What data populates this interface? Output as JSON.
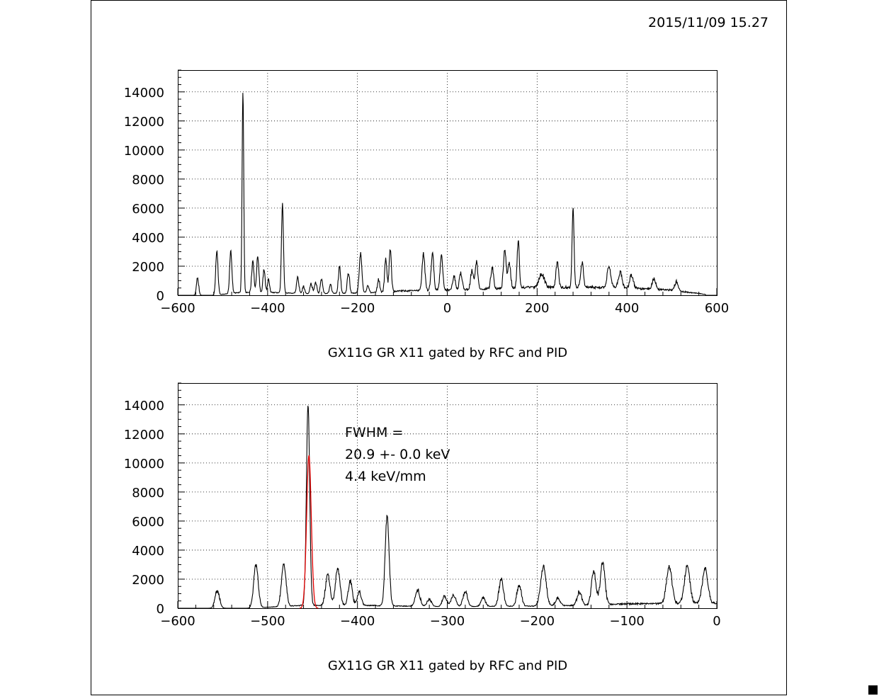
{
  "header": {
    "timestamp": "2015/11/09  15.27"
  },
  "colors": {
    "frame": "#000000",
    "histogram": "#000000",
    "fit": "#e00000",
    "grid": "#000000"
  },
  "chart_data": [
    {
      "type": "line",
      "title": "GX11G      GR X11 gated by RFC and PID",
      "xlabel": "",
      "ylabel": "",
      "xlim": [
        -600,
        600
      ],
      "ylim": [
        0,
        15500
      ],
      "xticks": [
        -600,
        -400,
        -200,
        0,
        200,
        400,
        600
      ],
      "yticks": [
        0,
        2000,
        4000,
        6000,
        8000,
        10000,
        12000,
        14000
      ],
      "grid": true,
      "baseline": [
        [
          -560,
          0
        ],
        [
          -520,
          0
        ],
        [
          -460,
          200
        ],
        [
          -400,
          200
        ],
        [
          -300,
          100
        ],
        [
          -200,
          150
        ],
        [
          -150,
          200
        ],
        [
          -100,
          300
        ],
        [
          0,
          350
        ],
        [
          100,
          450
        ],
        [
          200,
          550
        ],
        [
          300,
          550
        ],
        [
          400,
          500
        ],
        [
          500,
          350
        ],
        [
          570,
          80
        ]
      ],
      "peaks": [
        {
          "x": -556,
          "y": 1250,
          "w": 2.5
        },
        {
          "x": -513,
          "y": 3000,
          "w": 2.5
        },
        {
          "x": -482,
          "y": 2950,
          "w": 2.5
        },
        {
          "x": -455,
          "y": 13900,
          "w": 1.8
        },
        {
          "x": -433,
          "y": 2100,
          "w": 2.5
        },
        {
          "x": -422,
          "y": 2550,
          "w": 2.5
        },
        {
          "x": -408,
          "y": 1650,
          "w": 2.2
        },
        {
          "x": -398,
          "y": 900,
          "w": 2.2
        },
        {
          "x": -367,
          "y": 6150,
          "w": 2.2
        },
        {
          "x": -333,
          "y": 1150,
          "w": 2.5
        },
        {
          "x": -320,
          "y": 500,
          "w": 2.5
        },
        {
          "x": -303,
          "y": 750,
          "w": 2.5
        },
        {
          "x": -293,
          "y": 850,
          "w": 2.5
        },
        {
          "x": -280,
          "y": 1050,
          "w": 2.5
        },
        {
          "x": -260,
          "y": 550,
          "w": 2.5
        },
        {
          "x": -240,
          "y": 1850,
          "w": 2.5
        },
        {
          "x": -220,
          "y": 1450,
          "w": 2.5
        },
        {
          "x": -193,
          "y": 2700,
          "w": 3
        },
        {
          "x": -177,
          "y": 550,
          "w": 2.5
        },
        {
          "x": -153,
          "y": 900,
          "w": 2.5
        },
        {
          "x": -137,
          "y": 2350,
          "w": 2.5
        },
        {
          "x": -127,
          "y": 2950,
          "w": 2.5
        },
        {
          "x": -53,
          "y": 2550,
          "w": 3
        },
        {
          "x": -33,
          "y": 2600,
          "w": 3
        },
        {
          "x": -13,
          "y": 2350,
          "w": 3
        },
        {
          "x": 15,
          "y": 1000,
          "w": 3
        },
        {
          "x": 30,
          "y": 1100,
          "w": 3
        },
        {
          "x": 55,
          "y": 1300,
          "w": 3
        },
        {
          "x": 65,
          "y": 1900,
          "w": 3
        },
        {
          "x": 100,
          "y": 1500,
          "w": 3
        },
        {
          "x": 128,
          "y": 2650,
          "w": 3
        },
        {
          "x": 138,
          "y": 1700,
          "w": 3
        },
        {
          "x": 158,
          "y": 3250,
          "w": 2.5
        },
        {
          "x": 210,
          "y": 900,
          "w": 6
        },
        {
          "x": 245,
          "y": 1750,
          "w": 3
        },
        {
          "x": 280,
          "y": 5400,
          "w": 2.2
        },
        {
          "x": 300,
          "y": 1700,
          "w": 3
        },
        {
          "x": 360,
          "y": 1500,
          "w": 4
        },
        {
          "x": 385,
          "y": 1100,
          "w": 4
        },
        {
          "x": 410,
          "y": 900,
          "w": 4
        },
        {
          "x": 460,
          "y": 700,
          "w": 4
        },
        {
          "x": 510,
          "y": 600,
          "w": 4
        }
      ]
    },
    {
      "type": "line",
      "title": "GX11G      GR X11 gated by RFC and PID",
      "xlabel": "",
      "ylabel": "",
      "xlim": [
        -600,
        0
      ],
      "ylim": [
        0,
        15500
      ],
      "xticks": [
        -600,
        -500,
        -400,
        -300,
        -200,
        -100,
        0
      ],
      "yticks": [
        0,
        2000,
        4000,
        6000,
        8000,
        10000,
        12000,
        14000
      ],
      "grid": true,
      "annotation": [
        "FWHM =",
        "20.9 +-   0.0 keV",
        "4.4 keV/mm"
      ],
      "fit": {
        "name": "gaussian-fit",
        "center": -454,
        "amplitude": 10500,
        "sigma": 2.6
      }
    }
  ]
}
